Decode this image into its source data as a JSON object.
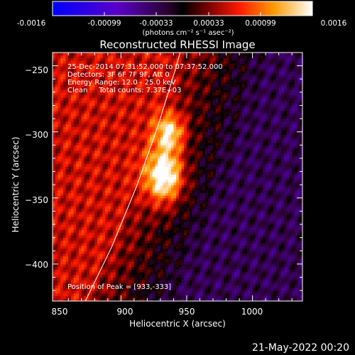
{
  "colorbar": {
    "ticks": [
      "-0.0016",
      "-0.00099",
      "-0.00033",
      "0.00033",
      "0.00099",
      "0.0016"
    ],
    "unit_label": "(photons cm⁻² s⁻¹ asec⁻²)"
  },
  "chart_data": {
    "type": "heatmap",
    "title": "Reconstructed RHESSI Image",
    "xlabel": "Heliocentric X (arcsec)",
    "ylabel": "Heliocentric Y (arcsec)",
    "xlim": [
      848,
      1038
    ],
    "ylim": [
      -428,
      -240
    ],
    "x_ticks": [
      850,
      900,
      950,
      1000
    ],
    "y_ticks": [
      -250,
      -300,
      -350,
      -400
    ],
    "x_tick_labels": [
      "850",
      "900",
      "950",
      "1000"
    ],
    "y_tick_labels": [
      "−250",
      "−300",
      "−350",
      "−400"
    ],
    "color_range": [
      -0.0016,
      0.0016
    ],
    "sources": [
      {
        "x": 933,
        "y": -333,
        "peak": 0.0016
      },
      {
        "x": 937,
        "y": -300,
        "peak": 0.00115
      }
    ],
    "limb_curve": [
      [
        873,
        -428
      ],
      [
        893,
        -387
      ],
      [
        912,
        -341
      ],
      [
        928,
        -296
      ],
      [
        941,
        -254
      ],
      [
        945,
        -240
      ]
    ],
    "info_lines": [
      "25-Dec-2014 07:31:52.000 to 07:37:52.000",
      "Detectors: 3F 6F 7F 9F, Att 0",
      "Energy Range: 12.0 - 25.0 keV",
      "Clean     Total counts: 7.37E+03"
    ],
    "peak_label": "Position of Peak = [933,-333]",
    "grid": false
  },
  "footer": {
    "timestamp": "21-May-2022 00:20"
  }
}
